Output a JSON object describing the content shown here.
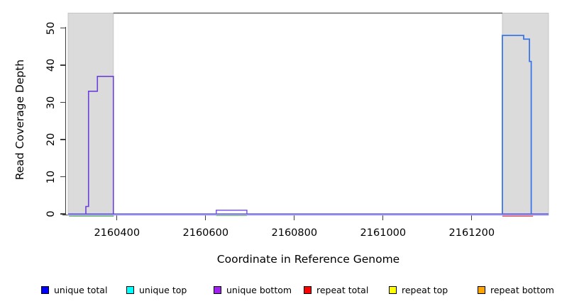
{
  "figure": {
    "x_axis": {
      "label": "Coordinate in Reference Genome",
      "tick_labels": [
        "2160400",
        "2160600",
        "2160800",
        "2161000",
        "2161200"
      ],
      "tick_values": [
        2160400,
        2160600,
        2160800,
        2161000,
        2161200
      ]
    },
    "y_axis": {
      "label": "Read Coverage Depth",
      "tick_labels": [
        "0",
        "10",
        "20",
        "30",
        "40",
        "50"
      ],
      "tick_values": [
        0,
        10,
        20,
        30,
        40,
        50
      ]
    },
    "legend": [
      {
        "label": "unique total",
        "color": "#0000FF"
      },
      {
        "label": "unique top",
        "color": "#00FFFF"
      },
      {
        "label": "unique bottom",
        "color": "#A020F0"
      },
      {
        "label": "repeat total",
        "color": "#FF0000"
      },
      {
        "label": "repeat top",
        "color": "#FFFF00"
      },
      {
        "label": "repeat bottom",
        "color": "#FFA500"
      }
    ]
  },
  "chart_data": {
    "type": "line",
    "title": "",
    "xlabel": "Coordinate in Reference Genome",
    "ylabel": "Read Coverage Depth",
    "xlim": [
      2160290,
      2161373
    ],
    "ylim": [
      0,
      54.1
    ],
    "x_ticks": [
      2160400,
      2160600,
      2160800,
      2161000,
      2161200
    ],
    "y_ticks": [
      0,
      10,
      20,
      30,
      40,
      50
    ],
    "grid": false,
    "legend_position": "bottom",
    "repeat_regions": [
      {
        "start": 2160290,
        "end": 2160392
      },
      {
        "start": 2161269,
        "end": 2161373
      }
    ],
    "band_fill": "#DBDBDB",
    "band_edge": "#C2C2C2",
    "frame_top_line": {
      "x": [
        2160392,
        2161269
      ],
      "y": 54.0,
      "color": "#666666",
      "width": 1.5
    },
    "series": [
      {
        "name": "baseline-underlay",
        "color": "#A89CEF",
        "width": 1.4,
        "points": [
          [
            2160290,
            -0.3
          ],
          [
            2161373,
            -0.3
          ]
        ]
      },
      {
        "name": "strand-overlap-left-repeat",
        "color": "#7CC87C",
        "width": 1.5,
        "points": [
          [
            2160292,
            -0.62
          ],
          [
            2160393,
            -0.62
          ]
        ]
      },
      {
        "name": "strand-overlap-bump",
        "color": "#8FCD8F",
        "width": 1.4,
        "points": [
          [
            2160624,
            -0.45
          ],
          [
            2160693,
            -0.45
          ]
        ]
      },
      {
        "name": "repeat-total-right",
        "color": "#EE6A6A",
        "width": 1.5,
        "points": [
          [
            2161269,
            -0.62
          ],
          [
            2161338,
            -0.62
          ]
        ]
      },
      {
        "name": "unique-total-baseline",
        "color": "#4440D5",
        "width": 1.2,
        "points": [
          [
            2160290,
            0
          ],
          [
            2161373,
            0
          ]
        ]
      },
      {
        "name": "unique-bottom-left-peak",
        "color": "#6B3FD9",
        "width": 1.6,
        "points": [
          [
            2160330,
            0
          ],
          [
            2160330,
            2
          ],
          [
            2160336,
            2
          ],
          [
            2160336,
            33
          ],
          [
            2160356,
            33
          ],
          [
            2160356,
            37
          ],
          [
            2160392,
            37
          ],
          [
            2160392,
            0
          ]
        ]
      },
      {
        "name": "unique-bottom-bump",
        "color": "#7E57E0",
        "width": 1.5,
        "points": [
          [
            2160624,
            0
          ],
          [
            2160624,
            1
          ],
          [
            2160693,
            1
          ],
          [
            2160693,
            0
          ]
        ]
      },
      {
        "name": "unique-total-right-peak",
        "color": "#3B76E8",
        "width": 1.8,
        "points": [
          [
            2161269,
            0
          ],
          [
            2161269,
            48
          ],
          [
            2161317,
            48
          ],
          [
            2161317,
            47
          ],
          [
            2161330,
            47
          ],
          [
            2161330,
            41
          ],
          [
            2161334,
            41
          ],
          [
            2161334,
            0
          ]
        ]
      }
    ]
  }
}
